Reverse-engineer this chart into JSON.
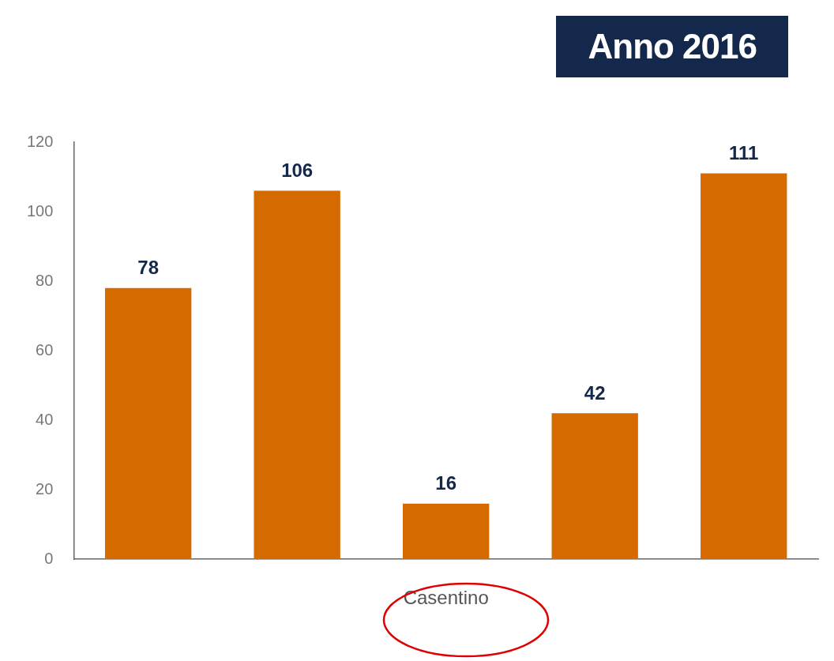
{
  "chart_data": {
    "type": "bar",
    "title": "Anno 2016",
    "categories": [
      null,
      null,
      "Casentino",
      null,
      null
    ],
    "values": [
      78,
      106,
      16,
      42,
      111
    ],
    "color": "#d46a00",
    "ylim": [
      0,
      120
    ],
    "yticks": [
      0,
      20,
      40,
      60,
      80,
      100,
      120
    ],
    "grid": false,
    "legend": false,
    "data_labels": true
  }
}
